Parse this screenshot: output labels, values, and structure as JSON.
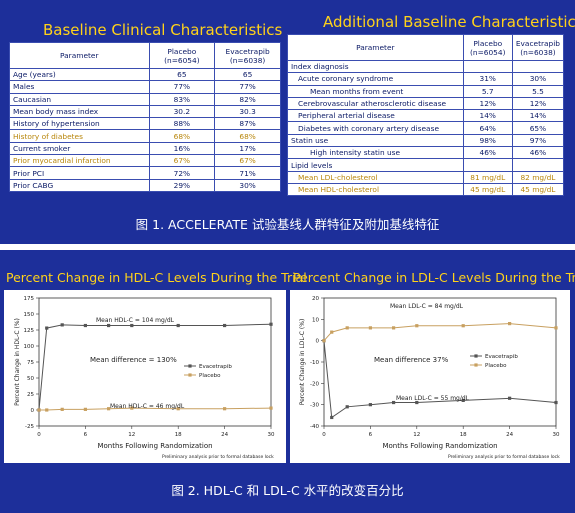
{
  "panel1": {
    "left_title": "Baseline Clinical Characteristics",
    "right_title": "Additional Baseline Characteristics",
    "caption": "图 1. ACCELERATE 试验基线人群特征及附加基线特征"
  },
  "table1": {
    "headers": [
      "Parameter",
      "Placebo\n(n=6054)",
      "Evacetrapib\n(n=6038)"
    ],
    "rows": [
      {
        "label": "Age (years)",
        "placebo": "65",
        "evac": "65",
        "hl": false
      },
      {
        "label": "Males",
        "placebo": "77%",
        "evac": "77%",
        "hl": false
      },
      {
        "label": "Caucasian",
        "placebo": "83%",
        "evac": "82%",
        "hl": false
      },
      {
        "label": "Mean body mass index",
        "placebo": "30.2",
        "evac": "30.3",
        "hl": false
      },
      {
        "label": "History of hypertension",
        "placebo": "88%",
        "evac": "87%",
        "hl": false
      },
      {
        "label": "History of diabetes",
        "placebo": "68%",
        "evac": "68%",
        "hl": true
      },
      {
        "label": "Current smoker",
        "placebo": "16%",
        "evac": "17%",
        "hl": false
      },
      {
        "label": "Prior myocardial infarction",
        "placebo": "67%",
        "evac": "67%",
        "hl": true
      },
      {
        "label": "Prior PCI",
        "placebo": "72%",
        "evac": "71%",
        "hl": false
      },
      {
        "label": "Prior CABG",
        "placebo": "29%",
        "evac": "30%",
        "hl": false
      }
    ]
  },
  "table2": {
    "headers": [
      "Parameter",
      "Placebo\n(n=6054)",
      "Evacetrapib\n(n=6038)"
    ],
    "rows": [
      {
        "label": "Index diagnosis",
        "placebo": "",
        "evac": "",
        "indent": 0,
        "hl": false
      },
      {
        "label": "Acute coronary syndrome",
        "placebo": "31%",
        "evac": "30%",
        "indent": 1,
        "hl": false
      },
      {
        "label": "Mean months from event",
        "placebo": "5.7",
        "evac": "5.5",
        "indent": 2,
        "hl": false
      },
      {
        "label": "Cerebrovascular atherosclerotic disease",
        "placebo": "12%",
        "evac": "12%",
        "indent": 1,
        "hl": false
      },
      {
        "label": "Peripheral arterial disease",
        "placebo": "14%",
        "evac": "14%",
        "indent": 1,
        "hl": false
      },
      {
        "label": "Diabetes with coronary artery disease",
        "placebo": "64%",
        "evac": "65%",
        "indent": 1,
        "hl": false
      },
      {
        "label": "Statin use",
        "placebo": "98%",
        "evac": "97%",
        "indent": 0,
        "hl": false
      },
      {
        "label": "High intensity statin use",
        "placebo": "46%",
        "evac": "46%",
        "indent": 2,
        "hl": false
      },
      {
        "label": "Lipid levels",
        "placebo": "",
        "evac": "",
        "indent": 0,
        "hl": false
      },
      {
        "label": "Mean LDL-cholesterol",
        "placebo": "81 mg/dL",
        "evac": "82 mg/dL",
        "indent": 1,
        "hl": true
      },
      {
        "label": "Mean HDL-cholesterol",
        "placebo": "45 mg/dL",
        "evac": "45 mg/dL",
        "indent": 1,
        "hl": true
      }
    ]
  },
  "panel2": {
    "caption": "图 2. HDL-C 和 LDL-C 水平的改变百分比"
  },
  "chart_data": [
    {
      "type": "line",
      "title": "Percent Change in HDL-C Levels During the Trial",
      "xlabel": "Months Following Randomization",
      "ylabel": "Percent Change in HDL-C (%)",
      "xlim": [
        0,
        30
      ],
      "ylim": [
        -25,
        175
      ],
      "xticks": [
        0,
        6,
        12,
        18,
        24,
        30
      ],
      "yticks": [
        -25,
        0,
        25,
        50,
        75,
        100,
        125,
        150,
        175
      ],
      "legend_position": "right",
      "annotations": {
        "top": "Mean HDL-C = 104 mg/dL",
        "middle": "Mean difference = 130%",
        "bottom": "Mean HDL-C = 46 mg/dL"
      },
      "note": "Preliminary analysis prior to formal database lock",
      "series": [
        {
          "name": "Evacetrapib",
          "color": "#555555",
          "x": [
            0,
            1,
            3,
            6,
            9,
            12,
            18,
            24,
            30
          ],
          "y": [
            0,
            128,
            133,
            132,
            132,
            132,
            132,
            132,
            134
          ]
        },
        {
          "name": "Placebo",
          "color": "#c8a060",
          "x": [
            0,
            1,
            3,
            6,
            9,
            12,
            18,
            24,
            30
          ],
          "y": [
            0,
            0,
            1,
            1,
            2,
            3,
            2,
            2,
            3
          ]
        }
      ]
    },
    {
      "type": "line",
      "title": "Percent Change in LDL-C Levels During the Trial",
      "xlabel": "Months Following Randomization",
      "ylabel": "Percent Change in LDL-C (%)",
      "xlim": [
        0,
        30
      ],
      "ylim": [
        -40,
        20
      ],
      "xticks": [
        0,
        6,
        12,
        18,
        24,
        30
      ],
      "yticks": [
        -40,
        -30,
        -20,
        -10,
        0,
        10,
        20
      ],
      "legend_position": "right",
      "annotations": {
        "top": "Mean LDL-C = 84 mg/dL",
        "middle": "Mean difference 37%",
        "bottom": "Mean LDL-C = 55 mg/dL"
      },
      "note": "Preliminary analysis prior to formal database lock",
      "series": [
        {
          "name": "Evacetrapib",
          "color": "#555555",
          "x": [
            0,
            1,
            3,
            6,
            9,
            12,
            18,
            24,
            30
          ],
          "y": [
            0,
            -36,
            -31,
            -30,
            -29,
            -29,
            -28,
            -27,
            -29
          ]
        },
        {
          "name": "Placebo",
          "color": "#c8a060",
          "x": [
            0,
            1,
            3,
            6,
            9,
            12,
            18,
            24,
            30
          ],
          "y": [
            0,
            4,
            6,
            6,
            6,
            7,
            7,
            8,
            6
          ]
        }
      ]
    }
  ]
}
